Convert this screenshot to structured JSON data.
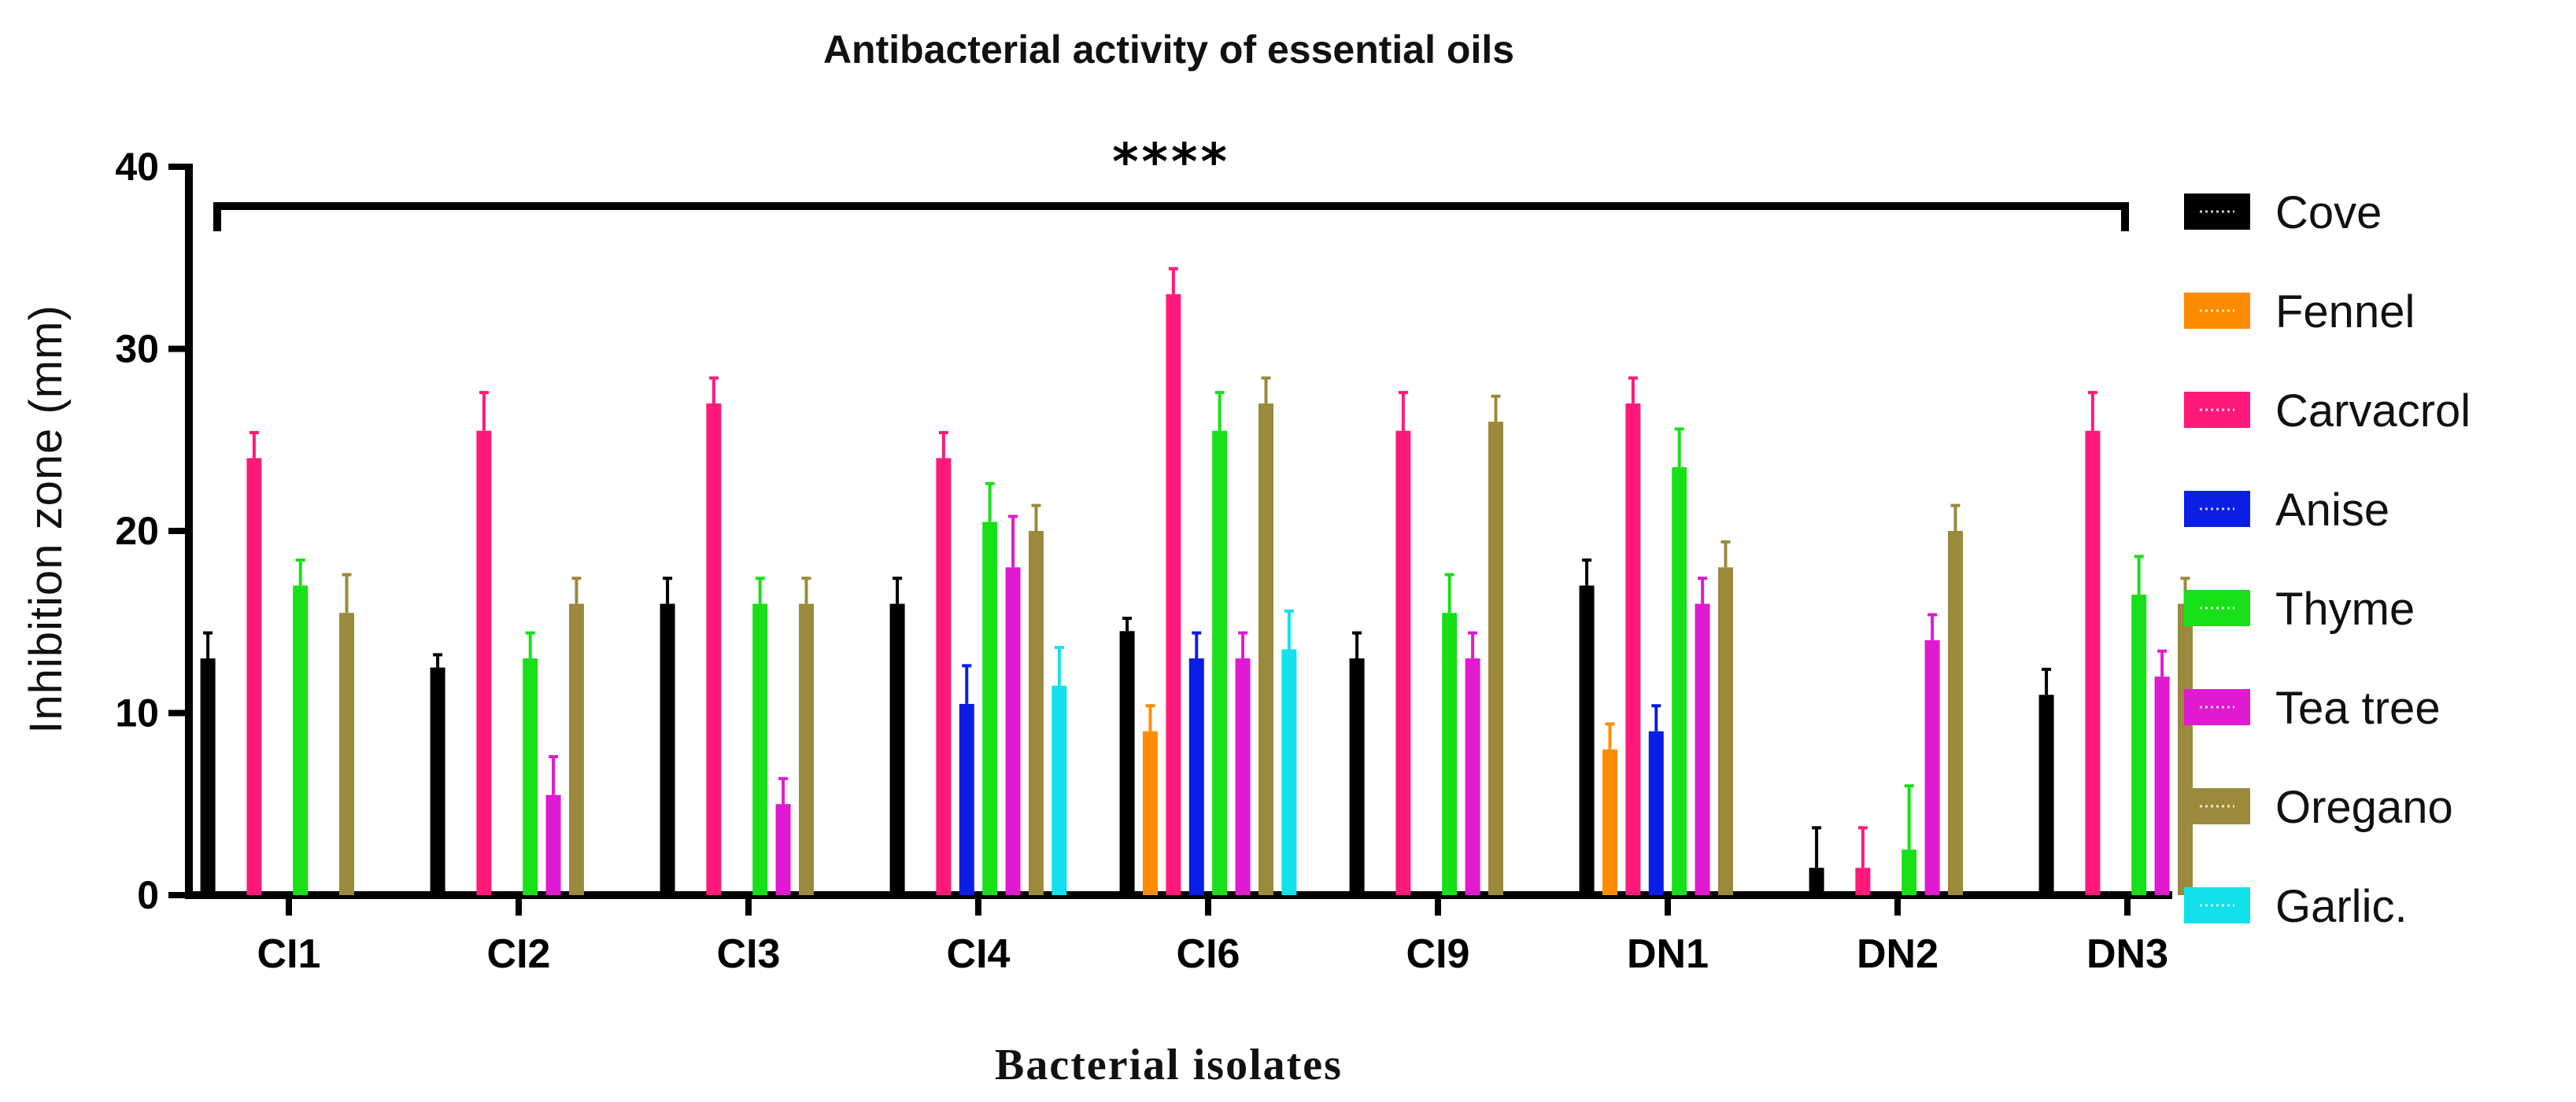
{
  "chart_data": {
    "type": "bar",
    "title": "Antibacterial activity of essential oils",
    "xlabel": "Bacterial isolates",
    "ylabel": "Inhibition zone (mm)",
    "ylim": [
      0,
      40
    ],
    "yticks": [
      0,
      10,
      20,
      30,
      40
    ],
    "categories": [
      "CI1",
      "CI2",
      "CI3",
      "CI4",
      "CI6",
      "CI9",
      "DN1",
      "DN2",
      "DN3"
    ],
    "significance": "****",
    "legend_position": "right",
    "series": [
      {
        "name": "Cove",
        "color": "#000000",
        "values": [
          13,
          12.5,
          16,
          16,
          14.5,
          13,
          17,
          1.5,
          11
        ],
        "errors": [
          1.4,
          0.7,
          1.4,
          1.4,
          0.7,
          1.4,
          1.4,
          2.2,
          1.4
        ]
      },
      {
        "name": "Fennel",
        "color": "#ff8c00",
        "values": [
          0,
          0,
          0,
          0,
          9,
          0,
          8,
          0,
          0
        ],
        "errors": [
          0,
          0,
          0,
          0,
          1.4,
          0,
          1.4,
          0,
          0
        ]
      },
      {
        "name": "Carvacrol",
        "color": "#ff1a7a",
        "values": [
          24,
          25.5,
          27,
          24,
          33,
          25.5,
          27,
          1.5,
          25.5
        ],
        "errors": [
          1.4,
          2.1,
          1.4,
          1.4,
          1.4,
          2.1,
          1.4,
          2.2,
          2.1
        ]
      },
      {
        "name": "Anise",
        "color": "#0a1ee6",
        "values": [
          0,
          0,
          0,
          10.5,
          13,
          0,
          9,
          0,
          0
        ],
        "errors": [
          0,
          0,
          0,
          2.1,
          1.4,
          0,
          1.4,
          0,
          0
        ]
      },
      {
        "name": "Thyme",
        "color": "#18e018",
        "values": [
          17,
          13,
          16,
          20.5,
          25.5,
          15.5,
          23.5,
          2.5,
          16.5
        ],
        "errors": [
          1.4,
          1.4,
          1.4,
          2.1,
          2.1,
          2.1,
          2.1,
          3.5,
          2.1
        ]
      },
      {
        "name": "Tea tree",
        "color": "#e01ad0",
        "values": [
          0,
          5.5,
          5,
          18,
          13,
          13,
          16,
          14,
          12
        ],
        "errors": [
          0,
          2.1,
          1.4,
          2.8,
          1.4,
          1.4,
          1.4,
          1.4,
          1.4
        ]
      },
      {
        "name": "Oregano",
        "color": "#9b8a3c",
        "values": [
          15.5,
          16,
          16,
          20,
          27,
          26,
          18,
          20,
          16
        ],
        "errors": [
          2.1,
          1.4,
          1.4,
          1.4,
          1.4,
          1.4,
          1.4,
          1.4,
          1.4
        ]
      },
      {
        "name": "Garlic.",
        "color": "#12e0ec",
        "values": [
          0,
          0,
          0,
          11.5,
          13.5,
          0,
          0,
          0,
          0
        ],
        "errors": [
          0,
          0,
          0,
          2.1,
          2.1,
          0,
          0,
          0,
          0
        ]
      }
    ]
  }
}
